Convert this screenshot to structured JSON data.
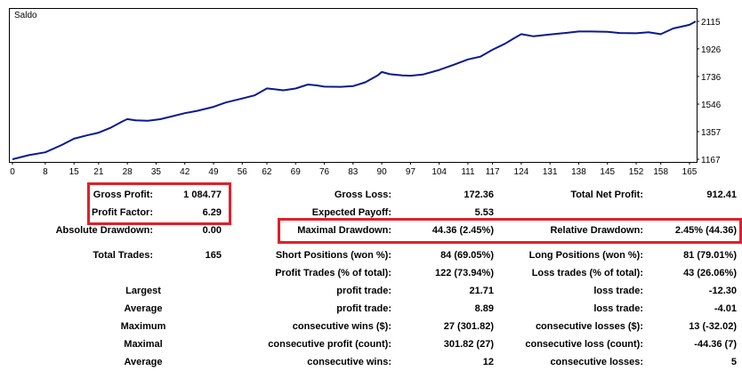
{
  "chart_data": {
    "type": "line",
    "title": "Saldo",
    "xlabel": "",
    "ylabel": "",
    "x_ticks": [
      0,
      8,
      15,
      21,
      28,
      35,
      42,
      49,
      56,
      62,
      69,
      76,
      83,
      90,
      97,
      104,
      111,
      117,
      124,
      131,
      138,
      145,
      152,
      158,
      165
    ],
    "y_ticks": [
      "2115",
      "1926",
      "1736",
      "1546",
      "1357",
      "1167"
    ],
    "ylim": [
      1167,
      2115
    ],
    "xlim": [
      0,
      165
    ],
    "grid": false,
    "series": [
      {
        "color": "#0a1a8c",
        "x": [
          0,
          4,
          8,
          12,
          15,
          18,
          21,
          24,
          27,
          28,
          30,
          33,
          36,
          39,
          42,
          45,
          49,
          52,
          56,
          59,
          62,
          64,
          66,
          69,
          72,
          74,
          76,
          80,
          83,
          86,
          89,
          90,
          92,
          95,
          97,
          100,
          104,
          107,
          111,
          114,
          117,
          120,
          122,
          124,
          127,
          131,
          134,
          138,
          141,
          145,
          148,
          152,
          155,
          158,
          161,
          165,
          167
        ],
        "y": [
          1167,
          1195,
          1215,
          1265,
          1308,
          1330,
          1350,
          1385,
          1430,
          1443,
          1434,
          1432,
          1442,
          1463,
          1484,
          1500,
          1527,
          1557,
          1585,
          1606,
          1654,
          1648,
          1641,
          1653,
          1681,
          1675,
          1666,
          1665,
          1670,
          1696,
          1743,
          1767,
          1752,
          1743,
          1741,
          1749,
          1781,
          1811,
          1853,
          1872,
          1920,
          1961,
          1995,
          2027,
          2012,
          2025,
          2033,
          2045,
          2045,
          2043,
          2035,
          2033,
          2040,
          2027,
          2066,
          2091,
          2115
        ]
      }
    ]
  },
  "stats": {
    "gross_profit_label": "Gross Profit:",
    "gross_profit_value": "1 084.77",
    "gross_loss_label": "Gross Loss:",
    "gross_loss_value": "172.36",
    "total_net_profit_label": "Total Net Profit:",
    "total_net_profit_value": "912.41",
    "profit_factor_label": "Profit Factor:",
    "profit_factor_value": "6.29",
    "expected_payoff_label": "Expected Payoff:",
    "expected_payoff_value": "5.53",
    "absolute_drawdown_label": "Absolute Drawdown:",
    "absolute_drawdown_value": "0.00",
    "maximal_drawdown_label": "Maximal Drawdown:",
    "maximal_drawdown_value": "44.36 (2.45%)",
    "relative_drawdown_label": "Relative Drawdown:",
    "relative_drawdown_value": "2.45% (44.36)",
    "total_trades_label": "Total Trades:",
    "total_trades_value": "165",
    "short_positions_label": "Short Positions (won %):",
    "short_positions_value": "84 (69.05%)",
    "long_positions_label": "Long Positions (won %):",
    "long_positions_value": "81 (79.01%)",
    "profit_trades_label": "Profit Trades (% of total):",
    "profit_trades_value": "122 (73.94%)",
    "loss_trades_label": "Loss trades (% of total):",
    "loss_trades_value": "43 (26.06%)",
    "largest_label": "Largest",
    "largest_profit_label": "profit trade:",
    "largest_profit_value": "21.71",
    "largest_loss_label": "loss trade:",
    "largest_loss_value": "-12.30",
    "average_label": "Average",
    "average_profit_label": "profit trade:",
    "average_profit_value": "8.89",
    "average_loss_label": "loss trade:",
    "average_loss_value": "-4.01",
    "maximum_label": "Maximum",
    "max_cons_wins_label": "consecutive wins ($):",
    "max_cons_wins_value": "27 (301.82)",
    "max_cons_losses_label": "consecutive losses ($):",
    "max_cons_losses_value": "13 (-32.02)",
    "maximal_label": "Maximal",
    "maximal_cons_profit_label": "consecutive profit (count):",
    "maximal_cons_profit_value": "301.82 (27)",
    "maximal_cons_loss_label": "consecutive loss (count):",
    "maximal_cons_loss_value": "-44.36 (7)",
    "average2_label": "Average",
    "avg_cons_wins_label": "consecutive wins:",
    "avg_cons_wins_value": "12",
    "avg_cons_losses_label": "consecutive losses:",
    "avg_cons_losses_value": "5"
  },
  "colors": {
    "line": "#0a1a8c",
    "highlight": "#e0202a",
    "frame": "#000000"
  }
}
